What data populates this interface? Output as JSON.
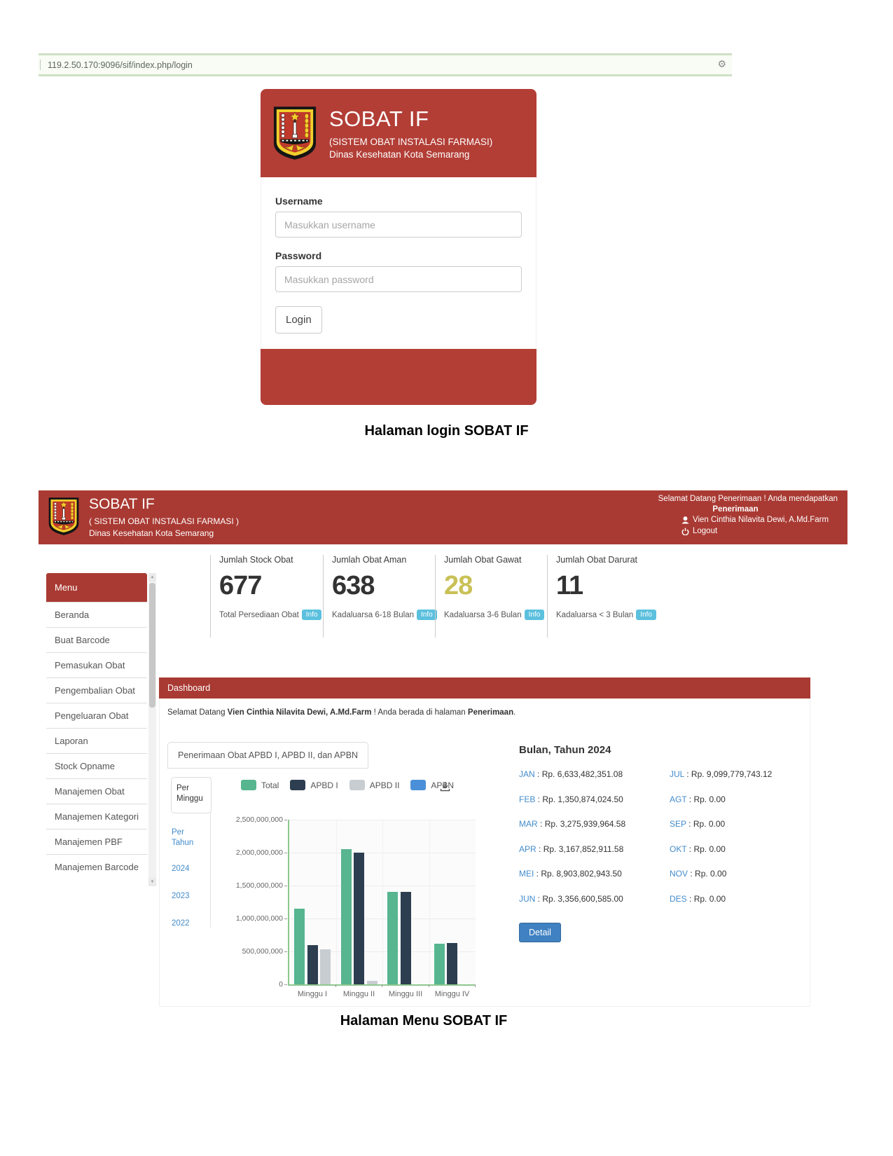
{
  "browser": {
    "url": "119.2.50.170:9096/sif/index.php/login",
    "gear_glyph": "⚙"
  },
  "login": {
    "title": "SOBAT IF",
    "subtitle": "(SISTEM OBAT INSTALASI FARMASI)",
    "org": "Dinas Kesehatan Kota Semarang",
    "username_label": "Username",
    "username_placeholder": "Masukkan username",
    "password_label": "Password",
    "password_placeholder": "Masukkan password",
    "login_button": "Login"
  },
  "caption_login": "Halaman login SOBAT IF",
  "caption_menu": "Halaman Menu SOBAT IF",
  "dashboard": {
    "header": {
      "title": "SOBAT IF",
      "subtitle": "( SISTEM OBAT INSTALASI FARMASI )",
      "org": "Dinas Kesehatan Kota Semarang",
      "welcome_line": "Selamat Datang Penerimaan ! Anda mendapatkan",
      "welcome_role": "Penerimaan",
      "user": "Vien Cinthia Nilavita Dewi, A.Md.Farm",
      "logout": "Logout"
    },
    "sidebar": {
      "title": "Menu",
      "items": [
        "Beranda",
        "Buat Barcode",
        "Pemasukan Obat",
        "Pengembalian Obat",
        "Pengeluaran Obat",
        "Laporan",
        "Stock Opname",
        "Manajemen Obat",
        "Manajemen Kategori",
        "Manajemen PBF",
        "Manajemen Barcode"
      ],
      "scroll_up_glyph": "▲",
      "scroll_down_glyph": "▼"
    },
    "stats": [
      {
        "title": "Jumlah Stock Obat",
        "value": "677",
        "caption": "Total Persediaan Obat",
        "badge": "Info",
        "value_color": "#333333"
      },
      {
        "title": "Jumlah Obat Aman",
        "value": "638",
        "caption": "Kadaluarsa 6-18 Bulan",
        "badge": "Info",
        "value_color": "#333333"
      },
      {
        "title": "Jumlah Obat Gawat",
        "value": "28",
        "caption": "Kadaluarsa 3-6 Bulan",
        "badge": "Info",
        "value_color": "#c9c156"
      },
      {
        "title": "Jumlah Obat Darurat",
        "value": "11",
        "caption": "Kadaluarsa < 3 Bulan",
        "badge": "Info",
        "value_color": "#333333"
      }
    ],
    "panel": {
      "title": "Dashboard",
      "welcome_prefix": "Selamat Datang ",
      "welcome_name": "Vien Cinthia Nilavita Dewi, A.Md.Farm",
      "welcome_mid": " ! Anda berada di halaman ",
      "welcome_page": "Penerimaan",
      "welcome_suffix": ".",
      "tab": "Penerimaan Obat APBD I, APBD II, dan APBN",
      "subtab_active": "Per Minggu",
      "subtab_links": [
        "Per Tahun",
        "2024",
        "2023",
        "2022"
      ]
    },
    "months_title": "Bulan, Tahun 2024",
    "months_left": [
      {
        "m": "JAN",
        "v": "Rp. 6,633,482,351.08"
      },
      {
        "m": "FEB",
        "v": "Rp. 1,350,874,024.50"
      },
      {
        "m": "MAR",
        "v": "Rp. 3,275,939,964.58"
      },
      {
        "m": "APR",
        "v": "Rp. 3,167,852,911.58"
      },
      {
        "m": "MEI",
        "v": "Rp. 8,903,802,943.50"
      },
      {
        "m": "JUN",
        "v": "Rp. 3,356,600,585.00"
      }
    ],
    "months_right": [
      {
        "m": "JUL",
        "v": "Rp. 9,099,779,743.12"
      },
      {
        "m": "AGT",
        "v": "Rp. 0.00"
      },
      {
        "m": "SEP",
        "v": "Rp. 0.00"
      },
      {
        "m": "OKT",
        "v": "Rp. 0.00"
      },
      {
        "m": "NOV",
        "v": "Rp. 0.00"
      },
      {
        "m": "DES",
        "v": "Rp. 0.00"
      }
    ],
    "detail_button": "Detail"
  },
  "colors": {
    "brand_red": "#a93a33",
    "login_red": "#b23e36",
    "link_blue": "#428bca",
    "info_badge": "#5bc0de",
    "detail_button": "#3f81c1",
    "axis_green": "#8ec88e"
  },
  "chart_data": {
    "type": "bar",
    "title": "",
    "categories": [
      "Minggu I",
      "Minggu II",
      "Minggu III",
      "Minggu IV"
    ],
    "series": [
      {
        "name": "Total",
        "color": "#57b590",
        "values": [
          1150000000,
          2050000000,
          1400000000,
          620000000
        ]
      },
      {
        "name": "APBD I",
        "color": "#2d3e50",
        "values": [
          600000000,
          2000000000,
          1400000000,
          630000000
        ]
      },
      {
        "name": "APBD II",
        "color": "#c8cdd2",
        "values": [
          530000000,
          50000000,
          0,
          0
        ]
      },
      {
        "name": "APBN",
        "color": "#4a90d9",
        "values": [
          0,
          0,
          0,
          0
        ]
      }
    ],
    "ylim": [
      0,
      2500000000
    ],
    "ytick_step": 500000000,
    "ytick_labels": [
      "0",
      "500,000,000",
      "1,000,000,000",
      "1,500,000,000",
      "2,000,000,000",
      "2,500,000,000"
    ],
    "grid": true,
    "legend_position": "top",
    "xlabel": "",
    "ylabel": ""
  }
}
